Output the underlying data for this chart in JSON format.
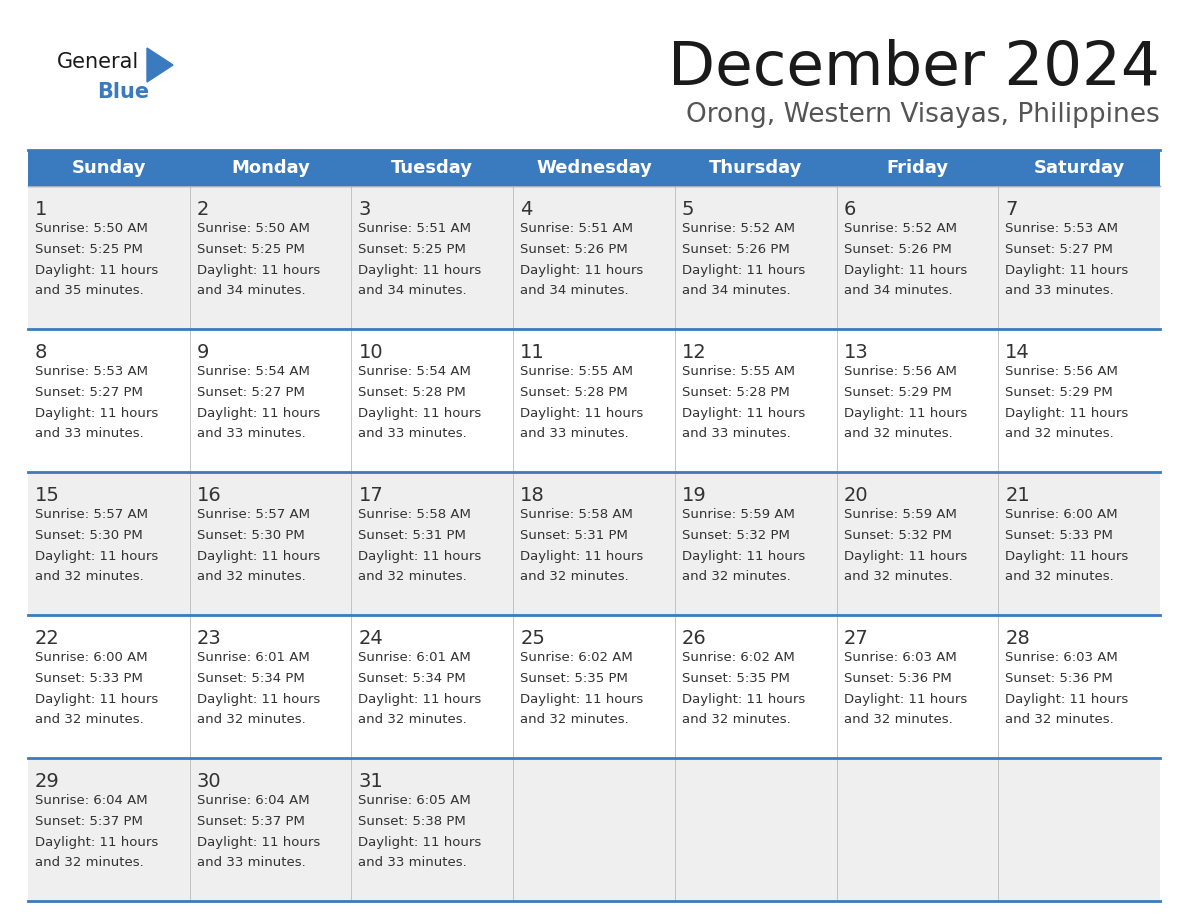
{
  "title": "December 2024",
  "subtitle": "Orong, Western Visayas, Philippines",
  "header_bg": "#3a7abf",
  "header_text_color": "#ffffff",
  "day_names": [
    "Sunday",
    "Monday",
    "Tuesday",
    "Wednesday",
    "Thursday",
    "Friday",
    "Saturday"
  ],
  "row_bg_even": "#efefef",
  "row_bg_odd": "#ffffff",
  "cell_border_color": "#3a7abf",
  "text_color": "#333333",
  "days": [
    {
      "day": 1,
      "col": 0,
      "row": 0,
      "sunrise": "5:50 AM",
      "sunset": "5:25 PM",
      "daylight_hrs": 11,
      "daylight_min": 35
    },
    {
      "day": 2,
      "col": 1,
      "row": 0,
      "sunrise": "5:50 AM",
      "sunset": "5:25 PM",
      "daylight_hrs": 11,
      "daylight_min": 34
    },
    {
      "day": 3,
      "col": 2,
      "row": 0,
      "sunrise": "5:51 AM",
      "sunset": "5:25 PM",
      "daylight_hrs": 11,
      "daylight_min": 34
    },
    {
      "day": 4,
      "col": 3,
      "row": 0,
      "sunrise": "5:51 AM",
      "sunset": "5:26 PM",
      "daylight_hrs": 11,
      "daylight_min": 34
    },
    {
      "day": 5,
      "col": 4,
      "row": 0,
      "sunrise": "5:52 AM",
      "sunset": "5:26 PM",
      "daylight_hrs": 11,
      "daylight_min": 34
    },
    {
      "day": 6,
      "col": 5,
      "row": 0,
      "sunrise": "5:52 AM",
      "sunset": "5:26 PM",
      "daylight_hrs": 11,
      "daylight_min": 34
    },
    {
      "day": 7,
      "col": 6,
      "row": 0,
      "sunrise": "5:53 AM",
      "sunset": "5:27 PM",
      "daylight_hrs": 11,
      "daylight_min": 33
    },
    {
      "day": 8,
      "col": 0,
      "row": 1,
      "sunrise": "5:53 AM",
      "sunset": "5:27 PM",
      "daylight_hrs": 11,
      "daylight_min": 33
    },
    {
      "day": 9,
      "col": 1,
      "row": 1,
      "sunrise": "5:54 AM",
      "sunset": "5:27 PM",
      "daylight_hrs": 11,
      "daylight_min": 33
    },
    {
      "day": 10,
      "col": 2,
      "row": 1,
      "sunrise": "5:54 AM",
      "sunset": "5:28 PM",
      "daylight_hrs": 11,
      "daylight_min": 33
    },
    {
      "day": 11,
      "col": 3,
      "row": 1,
      "sunrise": "5:55 AM",
      "sunset": "5:28 PM",
      "daylight_hrs": 11,
      "daylight_min": 33
    },
    {
      "day": 12,
      "col": 4,
      "row": 1,
      "sunrise": "5:55 AM",
      "sunset": "5:28 PM",
      "daylight_hrs": 11,
      "daylight_min": 33
    },
    {
      "day": 13,
      "col": 5,
      "row": 1,
      "sunrise": "5:56 AM",
      "sunset": "5:29 PM",
      "daylight_hrs": 11,
      "daylight_min": 32
    },
    {
      "day": 14,
      "col": 6,
      "row": 1,
      "sunrise": "5:56 AM",
      "sunset": "5:29 PM",
      "daylight_hrs": 11,
      "daylight_min": 32
    },
    {
      "day": 15,
      "col": 0,
      "row": 2,
      "sunrise": "5:57 AM",
      "sunset": "5:30 PM",
      "daylight_hrs": 11,
      "daylight_min": 32
    },
    {
      "day": 16,
      "col": 1,
      "row": 2,
      "sunrise": "5:57 AM",
      "sunset": "5:30 PM",
      "daylight_hrs": 11,
      "daylight_min": 32
    },
    {
      "day": 17,
      "col": 2,
      "row": 2,
      "sunrise": "5:58 AM",
      "sunset": "5:31 PM",
      "daylight_hrs": 11,
      "daylight_min": 32
    },
    {
      "day": 18,
      "col": 3,
      "row": 2,
      "sunrise": "5:58 AM",
      "sunset": "5:31 PM",
      "daylight_hrs": 11,
      "daylight_min": 32
    },
    {
      "day": 19,
      "col": 4,
      "row": 2,
      "sunrise": "5:59 AM",
      "sunset": "5:32 PM",
      "daylight_hrs": 11,
      "daylight_min": 32
    },
    {
      "day": 20,
      "col": 5,
      "row": 2,
      "sunrise": "5:59 AM",
      "sunset": "5:32 PM",
      "daylight_hrs": 11,
      "daylight_min": 32
    },
    {
      "day": 21,
      "col": 6,
      "row": 2,
      "sunrise": "6:00 AM",
      "sunset": "5:33 PM",
      "daylight_hrs": 11,
      "daylight_min": 32
    },
    {
      "day": 22,
      "col": 0,
      "row": 3,
      "sunrise": "6:00 AM",
      "sunset": "5:33 PM",
      "daylight_hrs": 11,
      "daylight_min": 32
    },
    {
      "day": 23,
      "col": 1,
      "row": 3,
      "sunrise": "6:01 AM",
      "sunset": "5:34 PM",
      "daylight_hrs": 11,
      "daylight_min": 32
    },
    {
      "day": 24,
      "col": 2,
      "row": 3,
      "sunrise": "6:01 AM",
      "sunset": "5:34 PM",
      "daylight_hrs": 11,
      "daylight_min": 32
    },
    {
      "day": 25,
      "col": 3,
      "row": 3,
      "sunrise": "6:02 AM",
      "sunset": "5:35 PM",
      "daylight_hrs": 11,
      "daylight_min": 32
    },
    {
      "day": 26,
      "col": 4,
      "row": 3,
      "sunrise": "6:02 AM",
      "sunset": "5:35 PM",
      "daylight_hrs": 11,
      "daylight_min": 32
    },
    {
      "day": 27,
      "col": 5,
      "row": 3,
      "sunrise": "6:03 AM",
      "sunset": "5:36 PM",
      "daylight_hrs": 11,
      "daylight_min": 32
    },
    {
      "day": 28,
      "col": 6,
      "row": 3,
      "sunrise": "6:03 AM",
      "sunset": "5:36 PM",
      "daylight_hrs": 11,
      "daylight_min": 32
    },
    {
      "day": 29,
      "col": 0,
      "row": 4,
      "sunrise": "6:04 AM",
      "sunset": "5:37 PM",
      "daylight_hrs": 11,
      "daylight_min": 32
    },
    {
      "day": 30,
      "col": 1,
      "row": 4,
      "sunrise": "6:04 AM",
      "sunset": "5:37 PM",
      "daylight_hrs": 11,
      "daylight_min": 33
    },
    {
      "day": 31,
      "col": 2,
      "row": 4,
      "sunrise": "6:05 AM",
      "sunset": "5:38 PM",
      "daylight_hrs": 11,
      "daylight_min": 33
    }
  ],
  "logo_color_general": "#1a1a1a",
  "logo_color_blue": "#3a7abf",
  "title_fontsize": 44,
  "subtitle_fontsize": 19,
  "header_fontsize": 13,
  "day_num_fontsize": 14,
  "cell_text_fontsize": 9.5
}
